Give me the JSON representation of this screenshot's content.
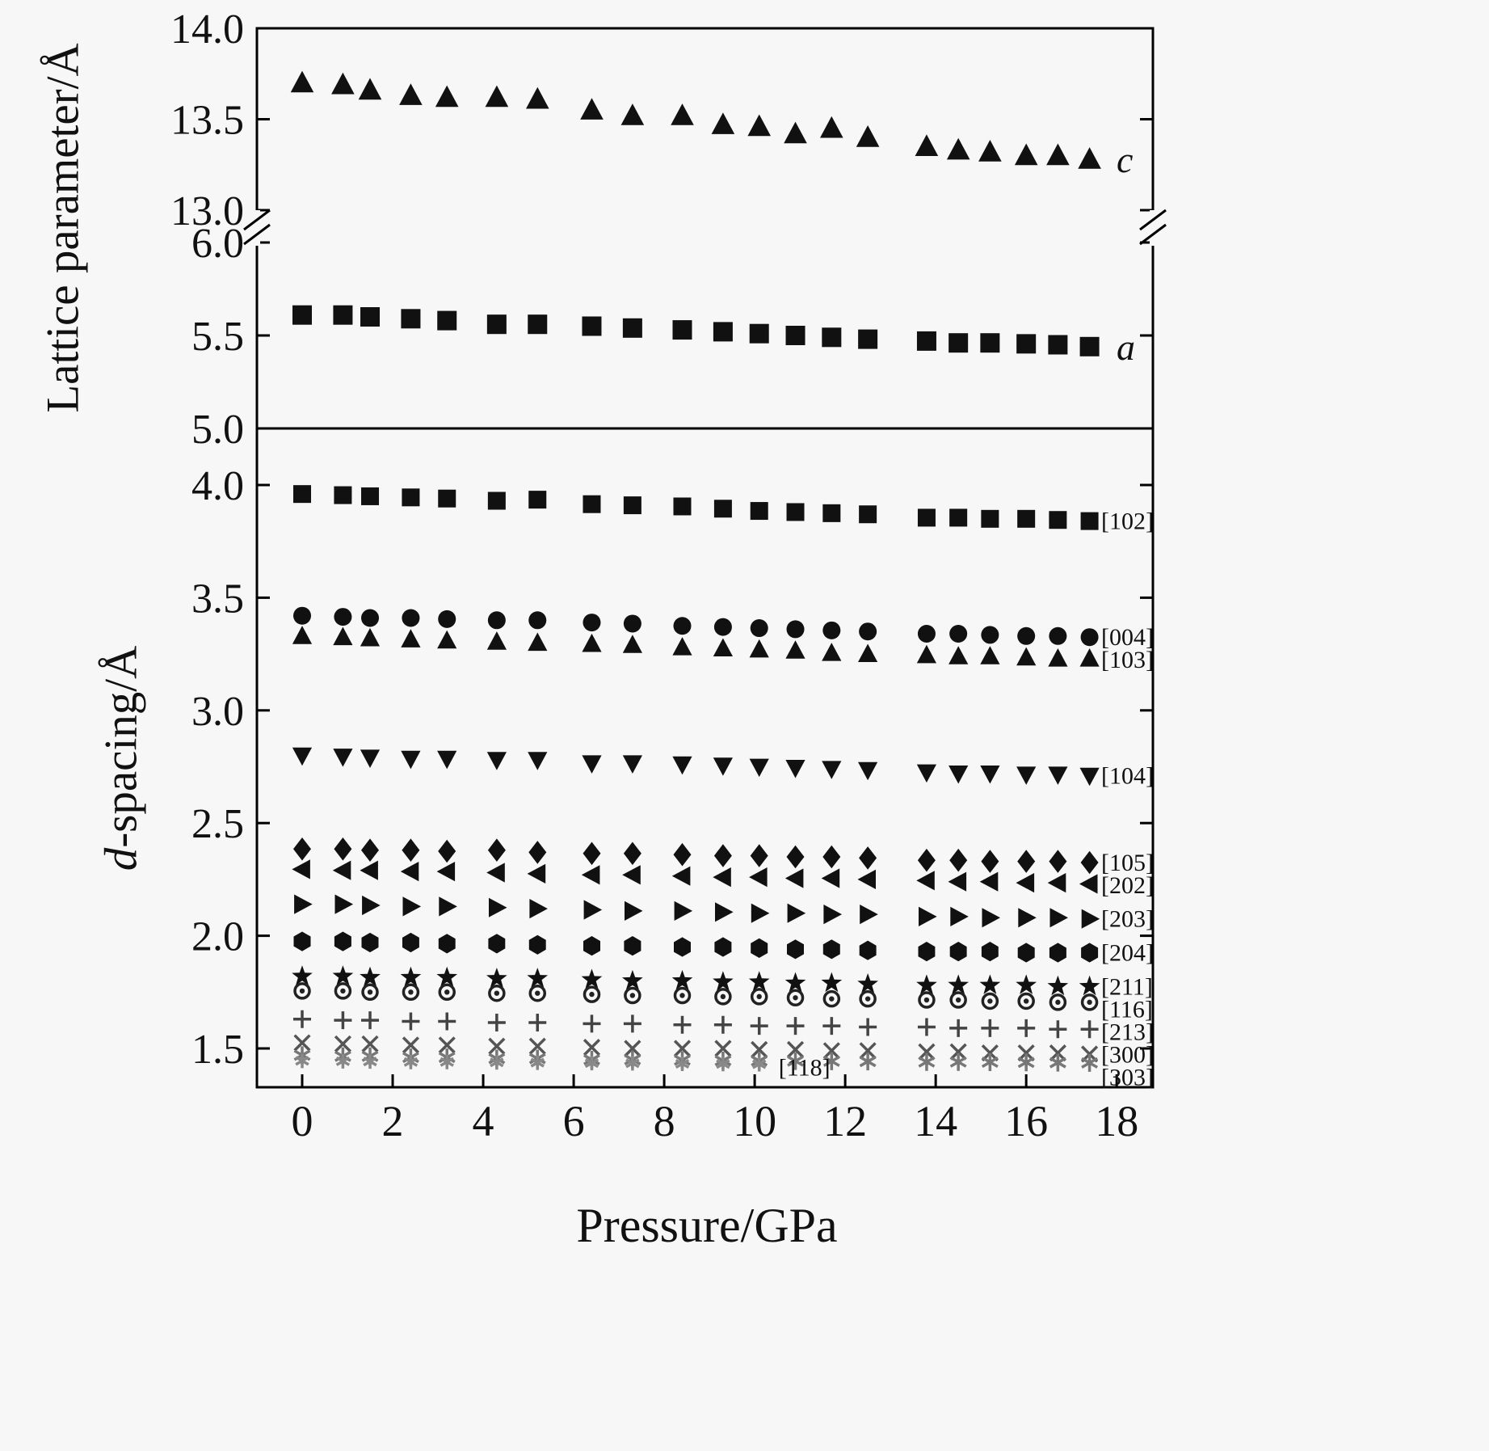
{
  "figure": {
    "bg": "#f7f7f7",
    "xlabel": "Pressure/GPa",
    "x_tick_labels": [
      "0",
      "2",
      "4",
      "6",
      "8",
      "10",
      "12",
      "14",
      "16",
      "18"
    ],
    "x_range": [
      -1.0,
      18.8
    ],
    "pressure": [
      0,
      0.9,
      1.5,
      2.4,
      3.2,
      4.3,
      5.2,
      6.4,
      7.3,
      8.4,
      9.3,
      10.1,
      10.9,
      11.7,
      12.5,
      13.8,
      14.5,
      15.2,
      16.0,
      16.7,
      17.4
    ]
  },
  "chart_data": [
    {
      "panel": "top",
      "type": "scatter",
      "ylabel": "Lattice parameter/Å",
      "y_axis_break": true,
      "upper": {
        "tick_labels": [
          "14.0",
          "13.5",
          "13.0"
        ],
        "range": [
          12.95,
          14.05
        ]
      },
      "lower": {
        "tick_labels": [
          "6.0",
          "5.5",
          "5.0"
        ],
        "range": [
          4.95,
          6.05
        ]
      },
      "series": [
        {
          "label": "c",
          "marker": "triangle-up",
          "color": "#111111",
          "size": 13,
          "values": [
            13.7,
            13.69,
            13.66,
            13.63,
            13.62,
            13.62,
            13.61,
            13.55,
            13.52,
            13.52,
            13.47,
            13.46,
            13.42,
            13.45,
            13.4,
            13.35,
            13.33,
            13.32,
            13.3,
            13.3,
            13.28
          ]
        },
        {
          "label": "a",
          "marker": "square",
          "color": "#111111",
          "size": 12,
          "values": [
            5.61,
            5.61,
            5.6,
            5.59,
            5.58,
            5.56,
            5.56,
            5.55,
            5.54,
            5.53,
            5.52,
            5.51,
            5.5,
            5.49,
            5.48,
            5.47,
            5.46,
            5.46,
            5.455,
            5.45,
            5.44
          ]
        }
      ]
    },
    {
      "panel": "bottom",
      "type": "scatter",
      "ylabel_parts": [
        {
          "text": "d",
          "italic": true
        },
        {
          "text": "-spacing/Å",
          "italic": false
        }
      ],
      "y_tick_labels": [
        "4.0",
        "3.5",
        "3.0",
        "2.5",
        "2.0",
        "1.5"
      ],
      "ylim": [
        1.33,
        4.25
      ],
      "series": [
        {
          "label": "[102]",
          "marker": "square",
          "color": "#111111",
          "size": 11,
          "values": [
            3.96,
            3.955,
            3.95,
            3.945,
            3.94,
            3.93,
            3.935,
            3.915,
            3.91,
            3.905,
            3.895,
            3.885,
            3.88,
            3.875,
            3.87,
            3.855,
            3.855,
            3.85,
            3.85,
            3.845,
            3.84
          ]
        },
        {
          "label": "[004]",
          "marker": "circle",
          "color": "#111111",
          "size": 11,
          "values": [
            3.42,
            3.415,
            3.41,
            3.41,
            3.405,
            3.4,
            3.4,
            3.39,
            3.385,
            3.375,
            3.37,
            3.365,
            3.36,
            3.355,
            3.35,
            3.34,
            3.34,
            3.335,
            3.33,
            3.33,
            3.325
          ]
        },
        {
          "label": "[103]",
          "marker": "triangle-up",
          "color": "#111111",
          "size": 11,
          "values": [
            3.33,
            3.325,
            3.32,
            3.315,
            3.31,
            3.305,
            3.3,
            3.295,
            3.29,
            3.28,
            3.275,
            3.27,
            3.265,
            3.255,
            3.25,
            3.245,
            3.24,
            3.24,
            3.235,
            3.23,
            3.23
          ]
        },
        {
          "label": "[104]",
          "marker": "triangle-down",
          "color": "#111111",
          "size": 11,
          "values": [
            2.8,
            2.795,
            2.79,
            2.785,
            2.785,
            2.78,
            2.78,
            2.765,
            2.765,
            2.76,
            2.755,
            2.75,
            2.745,
            2.74,
            2.735,
            2.725,
            2.72,
            2.72,
            2.715,
            2.715,
            2.71
          ]
        },
        {
          "label": "[105]",
          "marker": "diamond",
          "color": "#111111",
          "size": 11,
          "values": [
            2.385,
            2.385,
            2.38,
            2.38,
            2.375,
            2.38,
            2.37,
            2.365,
            2.365,
            2.36,
            2.355,
            2.355,
            2.35,
            2.35,
            2.345,
            2.335,
            2.335,
            2.33,
            2.33,
            2.33,
            2.325
          ]
        },
        {
          "label": "[202]",
          "marker": "triangle-left",
          "color": "#111111",
          "size": 11,
          "values": [
            2.295,
            2.29,
            2.29,
            2.285,
            2.285,
            2.28,
            2.275,
            2.27,
            2.27,
            2.265,
            2.26,
            2.26,
            2.255,
            2.255,
            2.25,
            2.245,
            2.24,
            2.24,
            2.235,
            2.235,
            2.23
          ]
        },
        {
          "label": "[203]",
          "marker": "triangle-right",
          "color": "#111111",
          "size": 11,
          "values": [
            2.14,
            2.14,
            2.135,
            2.13,
            2.13,
            2.125,
            2.12,
            2.115,
            2.11,
            2.11,
            2.105,
            2.1,
            2.1,
            2.095,
            2.095,
            2.085,
            2.085,
            2.08,
            2.08,
            2.08,
            2.075
          ]
        },
        {
          "label": "[204]",
          "marker": "hexagon",
          "color": "#111111",
          "size": 11,
          "values": [
            1.975,
            1.975,
            1.97,
            1.97,
            1.965,
            1.965,
            1.96,
            1.955,
            1.955,
            1.95,
            1.95,
            1.945,
            1.94,
            1.94,
            1.935,
            1.93,
            1.93,
            1.93,
            1.925,
            1.925,
            1.925
          ]
        },
        {
          "label": "[211]",
          "marker": "star",
          "color": "#111111",
          "size": 10,
          "values": [
            1.82,
            1.82,
            1.815,
            1.815,
            1.815,
            1.81,
            1.81,
            1.805,
            1.8,
            1.8,
            1.795,
            1.795,
            1.79,
            1.79,
            1.785,
            1.78,
            1.78,
            1.78,
            1.78,
            1.775,
            1.775
          ]
        },
        {
          "label": "[116]",
          "marker": "circle-dot",
          "color": "#222222",
          "size": 10,
          "values": [
            1.755,
            1.755,
            1.75,
            1.75,
            1.75,
            1.745,
            1.745,
            1.74,
            1.735,
            1.735,
            1.73,
            1.73,
            1.725,
            1.72,
            1.72,
            1.715,
            1.715,
            1.71,
            1.71,
            1.705,
            1.705
          ]
        },
        {
          "label": "[213]",
          "marker": "plus",
          "color": "#444444",
          "size": 11,
          "values": [
            1.63,
            1.625,
            1.625,
            1.62,
            1.62,
            1.615,
            1.615,
            1.61,
            1.61,
            1.605,
            1.605,
            1.6,
            1.6,
            1.6,
            1.595,
            1.595,
            1.59,
            1.59,
            1.59,
            1.585,
            1.585
          ]
        },
        {
          "label": "[300]",
          "marker": "x",
          "color": "#555555",
          "size": 11,
          "values": [
            1.525,
            1.52,
            1.52,
            1.515,
            1.515,
            1.51,
            1.51,
            1.505,
            1.5,
            1.5,
            1.5,
            1.495,
            1.495,
            1.49,
            1.49,
            1.485,
            1.485,
            1.48,
            1.48,
            1.48,
            1.475
          ]
        },
        {
          "label": "[303]",
          "marker": "asterisk",
          "color": "#777777",
          "size": 11,
          "values": [
            1.47,
            1.465,
            1.465,
            1.46,
            1.46,
            1.455,
            1.455,
            1.45,
            1.45,
            1.448,
            1.446,
            1.445,
            1.444,
            1.443,
            1.442,
            1.44,
            1.44,
            1.439,
            1.438,
            1.437,
            1.436
          ]
        },
        {
          "label": "[118]",
          "marker": "asterisk",
          "color": "#888888",
          "size": 9,
          "label_at": "end",
          "x": [
            0,
            0.9,
            1.5,
            2.4,
            3.2,
            4.3,
            5.2,
            6.4,
            7.3,
            8.4,
            9.3,
            10.1
          ],
          "values": [
            1.445,
            1.443,
            1.442,
            1.44,
            1.44,
            1.438,
            1.437,
            1.435,
            1.434,
            1.432,
            1.431,
            1.43
          ]
        }
      ]
    }
  ]
}
